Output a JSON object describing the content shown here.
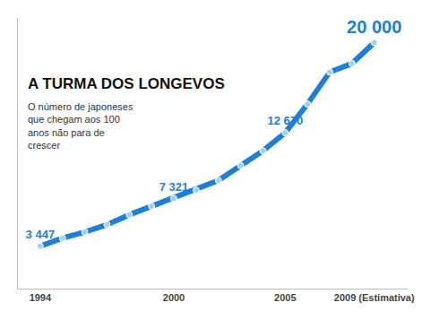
{
  "chart_data": {
    "type": "line",
    "title": "A TURMA DOS LONGEVOS",
    "subtitle": "O número de japoneses que chegam aos 100 anos não para de crescer",
    "x": [
      1994,
      1995,
      1996,
      1997,
      1998,
      1999,
      2000,
      2001,
      2002,
      2003,
      2004,
      2005,
      2006,
      2007,
      2008,
      2009
    ],
    "values": [
      3447,
      4100,
      4600,
      5200,
      6000,
      6700,
      7321,
      8000,
      8800,
      10000,
      11200,
      12670,
      15000,
      17600,
      18300,
      20000
    ],
    "value_labels": [
      "3 447",
      null,
      null,
      null,
      null,
      null,
      "7 321",
      null,
      null,
      null,
      null,
      "12 670",
      null,
      null,
      null,
      "20 000"
    ],
    "data_labels": true,
    "color": "#1f7fd6",
    "marker": "circle",
    "xlim": [
      1993,
      2010.5
    ],
    "xticks": [
      1994,
      2000,
      2005,
      {
        "value": 2009,
        "label": "2009 (Estimativa)"
      }
    ],
    "ylim": [
      0,
      22000
    ],
    "yticks": [],
    "grid": false,
    "tick_labels": "x"
  }
}
